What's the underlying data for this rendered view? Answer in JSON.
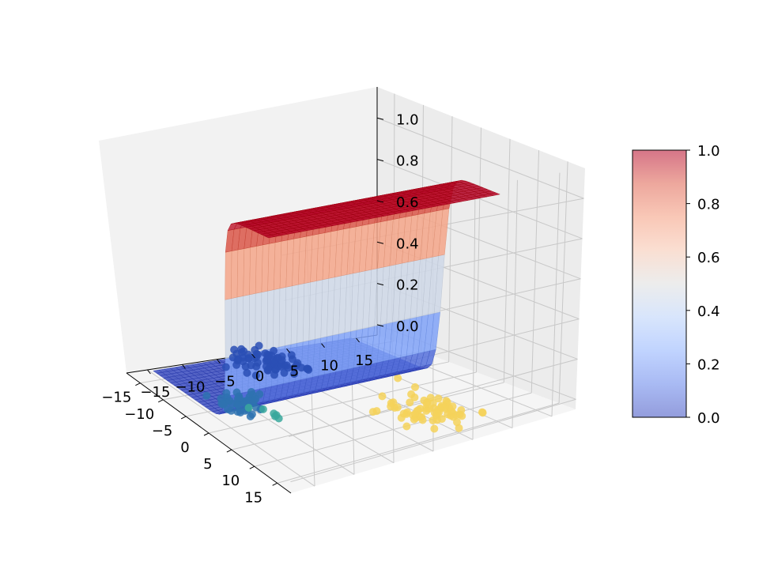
{
  "chart_data": {
    "type": "surface3d",
    "title": "",
    "xlabel": "",
    "ylabel": "",
    "zlabel": "",
    "x_ticks": [
      -15,
      -10,
      -5,
      0,
      5,
      10,
      15
    ],
    "y_ticks": [
      -15,
      -10,
      -5,
      0,
      5,
      10,
      15
    ],
    "z_ticks": [
      0.0,
      0.2,
      0.4,
      0.6,
      0.8,
      1.0
    ],
    "x_tick_labels": [
      "−15",
      "−10",
      "−5",
      "0",
      "5",
      "10",
      "15"
    ],
    "y_tick_labels": [
      "−15",
      "−10",
      "−5",
      "0",
      "5",
      "10",
      "15"
    ],
    "z_tick_labels": [
      "0.0",
      "0.2",
      "0.4",
      "0.6",
      "0.8",
      "1.0"
    ],
    "xlim": [
      -18,
      18
    ],
    "ylim": [
      -18,
      18
    ],
    "zlim": [
      -0.05,
      1.15
    ],
    "grid": true,
    "surface": {
      "function": "logistic",
      "colormap": "coolwarm",
      "x_range": [
        -15,
        12
      ],
      "y_range": [
        -16,
        12
      ],
      "transition_center_x": 2.0,
      "steepness": 1.6
    },
    "colorbar": {
      "placement": "right",
      "range": [
        0.0,
        1.0
      ],
      "ticks": [
        0.0,
        0.2,
        0.4,
        0.6,
        0.8,
        1.0
      ],
      "tick_labels": [
        "0.0",
        "0.2",
        "0.4",
        "0.6",
        "0.8",
        "1.0"
      ],
      "colormap": "coolwarm"
    },
    "scatter_series": [
      {
        "color": "#2a4fb5",
        "centroid": [
          -12,
          -2
        ],
        "spread": 2.5,
        "count": 70
      },
      {
        "color": "#2e72b0",
        "centroid": [
          -3,
          -12
        ],
        "spread": 1.8,
        "count": 45
      },
      {
        "color": "#3aa89c",
        "centroid": [
          1,
          -10
        ],
        "spread": 1.5,
        "count": 6
      },
      {
        "color": "#f5d25a",
        "centroid": [
          10,
          5
        ],
        "spread": 3.0,
        "count": 70
      }
    ]
  }
}
